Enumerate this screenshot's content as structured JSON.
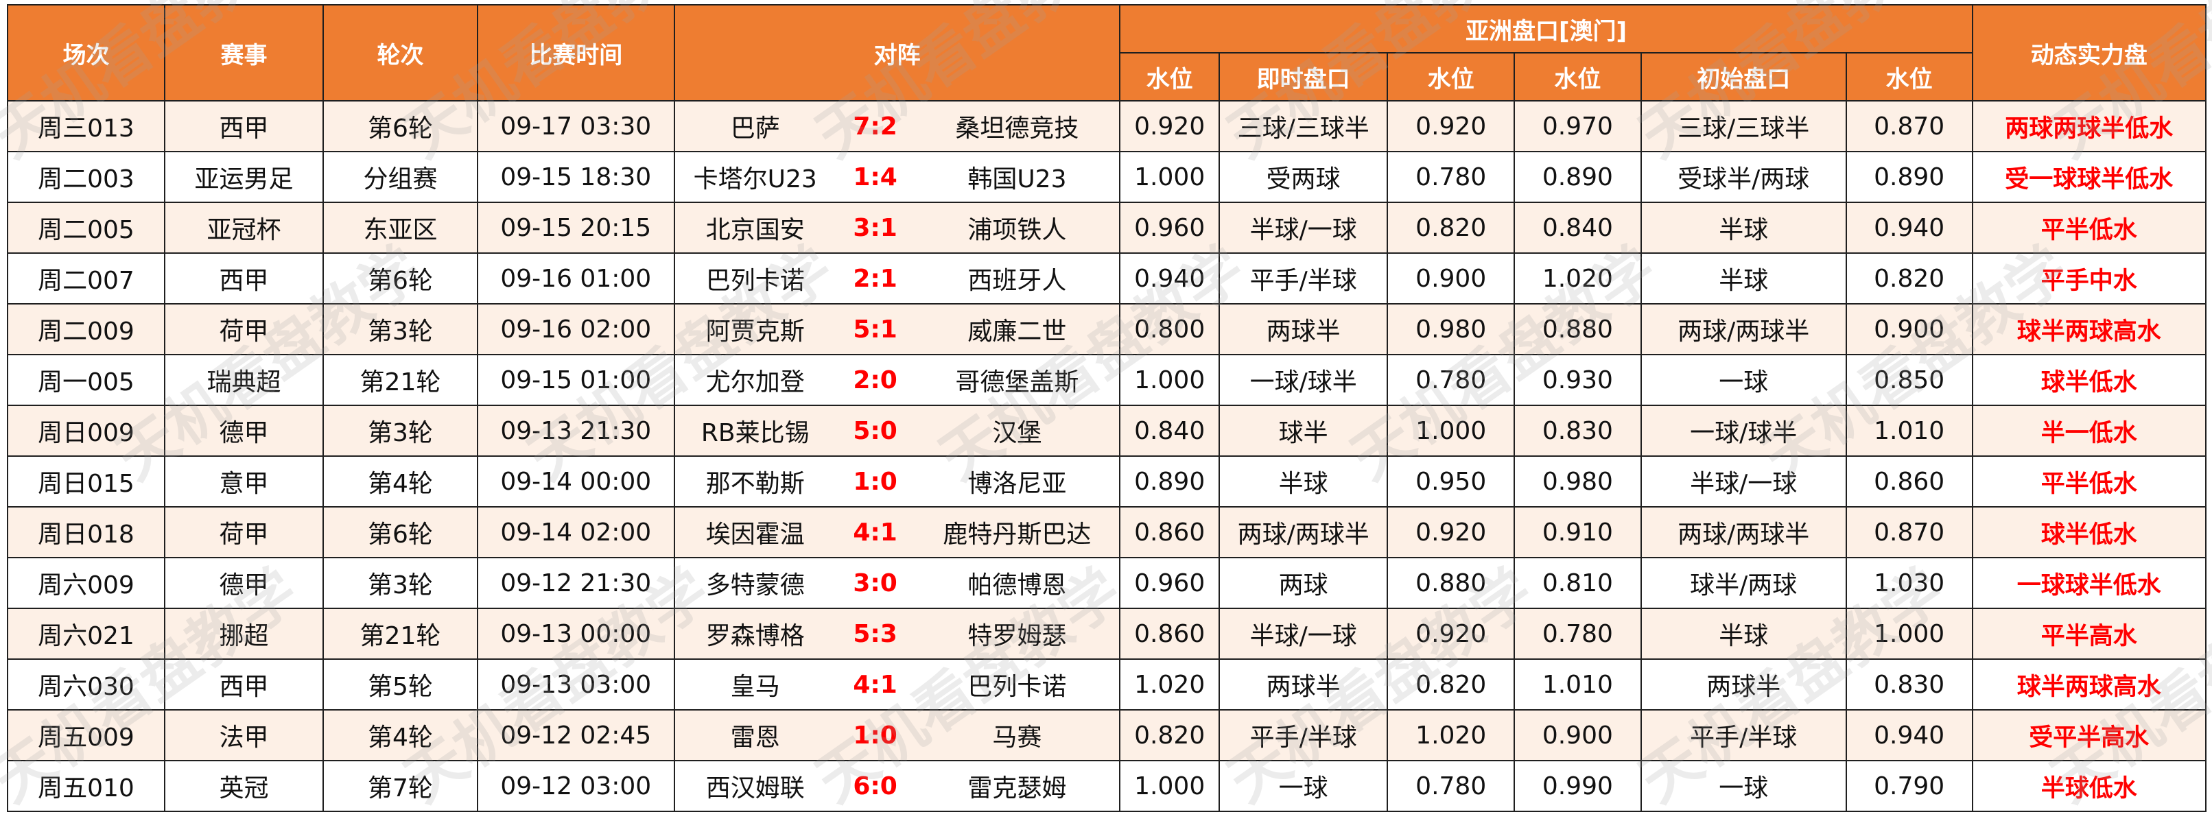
{
  "headers": {
    "match_no": "场次",
    "league": "赛事",
    "round": "轮次",
    "time": "比赛时间",
    "fixture": "对阵",
    "asian_group": "亚洲盘口[澳门]",
    "dynamic": "动态实力盘",
    "sub": [
      "水位",
      "即时盘口",
      "水位",
      "水位",
      "初始盘口",
      "水位"
    ]
  },
  "rows": [
    {
      "no": "周三013",
      "league": "西甲",
      "round": "第6轮",
      "time": "09-17 03:30",
      "home": "巴萨",
      "score": "7:2",
      "away": "桑坦德竞技",
      "w1": "0.920",
      "live": "三球/三球半",
      "w2": "0.920",
      "w3": "0.970",
      "init": "三球/三球半",
      "w4": "0.870",
      "dyn": "两球两球半低水"
    },
    {
      "no": "周二003",
      "league": "亚运男足",
      "round": "分组赛",
      "time": "09-15 18:30",
      "home": "卡塔尔U23",
      "score": "1:4",
      "away": "韩国U23",
      "w1": "1.000",
      "live": "受两球",
      "w2": "0.780",
      "w3": "0.890",
      "init": "受球半/两球",
      "w4": "0.890",
      "dyn": "受一球球半低水"
    },
    {
      "no": "周二005",
      "league": "亚冠杯",
      "round": "东亚区",
      "time": "09-15 20:15",
      "home": "北京国安",
      "score": "3:1",
      "away": "浦项铁人",
      "w1": "0.960",
      "live": "半球/一球",
      "w2": "0.820",
      "w3": "0.840",
      "init": "半球",
      "w4": "0.940",
      "dyn": "平半低水"
    },
    {
      "no": "周二007",
      "league": "西甲",
      "round": "第6轮",
      "time": "09-16 01:00",
      "home": "巴列卡诺",
      "score": "2:1",
      "away": "西班牙人",
      "w1": "0.940",
      "live": "平手/半球",
      "w2": "0.900",
      "w3": "1.020",
      "init": "半球",
      "w4": "0.820",
      "dyn": "平手中水"
    },
    {
      "no": "周二009",
      "league": "荷甲",
      "round": "第3轮",
      "time": "09-16 02:00",
      "home": "阿贾克斯",
      "score": "5:1",
      "away": "威廉二世",
      "w1": "0.800",
      "live": "两球半",
      "w2": "0.980",
      "w3": "0.880",
      "init": "两球/两球半",
      "w4": "0.900",
      "dyn": "球半两球高水"
    },
    {
      "no": "周一005",
      "league": "瑞典超",
      "round": "第21轮",
      "time": "09-15 01:00",
      "home": "尤尔加登",
      "score": "2:0",
      "away": "哥德堡盖斯",
      "w1": "1.000",
      "live": "一球/球半",
      "w2": "0.780",
      "w3": "0.930",
      "init": "一球",
      "w4": "0.850",
      "dyn": "球半低水"
    },
    {
      "no": "周日009",
      "league": "德甲",
      "round": "第3轮",
      "time": "09-13 21:30",
      "home": "RB莱比锡",
      "score": "5:0",
      "away": "汉堡",
      "w1": "0.840",
      "live": "球半",
      "w2": "1.000",
      "w3": "0.830",
      "init": "一球/球半",
      "w4": "1.010",
      "dyn": "半一低水"
    },
    {
      "no": "周日015",
      "league": "意甲",
      "round": "第4轮",
      "time": "09-14 00:00",
      "home": "那不勒斯",
      "score": "1:0",
      "away": "博洛尼亚",
      "w1": "0.890",
      "live": "半球",
      "w2": "0.950",
      "w3": "0.980",
      "init": "半球/一球",
      "w4": "0.860",
      "dyn": "平半低水"
    },
    {
      "no": "周日018",
      "league": "荷甲",
      "round": "第6轮",
      "time": "09-14 02:00",
      "home": "埃因霍温",
      "score": "4:1",
      "away": "鹿特丹斯巴达",
      "w1": "0.860",
      "live": "两球/两球半",
      "w2": "0.920",
      "w3": "0.910",
      "init": "两球/两球半",
      "w4": "0.870",
      "dyn": "球半低水"
    },
    {
      "no": "周六009",
      "league": "德甲",
      "round": "第3轮",
      "time": "09-12 21:30",
      "home": "多特蒙德",
      "score": "3:0",
      "away": "帕德博恩",
      "w1": "0.960",
      "live": "两球",
      "w2": "0.880",
      "w3": "0.810",
      "init": "球半/两球",
      "w4": "1.030",
      "dyn": "一球球半低水"
    },
    {
      "no": "周六021",
      "league": "挪超",
      "round": "第21轮",
      "time": "09-13 00:00",
      "home": "罗森博格",
      "score": "5:3",
      "away": "特罗姆瑟",
      "w1": "0.860",
      "live": "半球/一球",
      "w2": "0.920",
      "w3": "0.780",
      "init": "半球",
      "w4": "1.000",
      "dyn": "平半高水"
    },
    {
      "no": "周六030",
      "league": "西甲",
      "round": "第5轮",
      "time": "09-13 03:00",
      "home": "皇马",
      "score": "4:1",
      "away": "巴列卡诺",
      "w1": "1.020",
      "live": "两球半",
      "w2": "0.820",
      "w3": "1.010",
      "init": "两球半",
      "w4": "0.830",
      "dyn": "球半两球高水"
    },
    {
      "no": "周五009",
      "league": "法甲",
      "round": "第4轮",
      "time": "09-12 02:45",
      "home": "雷恩",
      "score": "1:0",
      "away": "马赛",
      "w1": "0.820",
      "live": "平手/半球",
      "w2": "1.020",
      "w3": "0.900",
      "init": "平手/半球",
      "w4": "0.940",
      "dyn": "受平半高水"
    },
    {
      "no": "周五010",
      "league": "英冠",
      "round": "第7轮",
      "time": "09-12 03:00",
      "home": "西汉姆联",
      "score": "6:0",
      "away": "雷克瑟姆",
      "w1": "1.000",
      "live": "一球",
      "w2": "0.780",
      "w3": "0.990",
      "init": "一球",
      "w4": "0.790",
      "dyn": "半球低水"
    }
  ],
  "watermark": "天机看盘教学",
  "colors": {
    "header": "#ee7d31",
    "stripe": "#fdf0e6",
    "accent": "#ff0000"
  }
}
